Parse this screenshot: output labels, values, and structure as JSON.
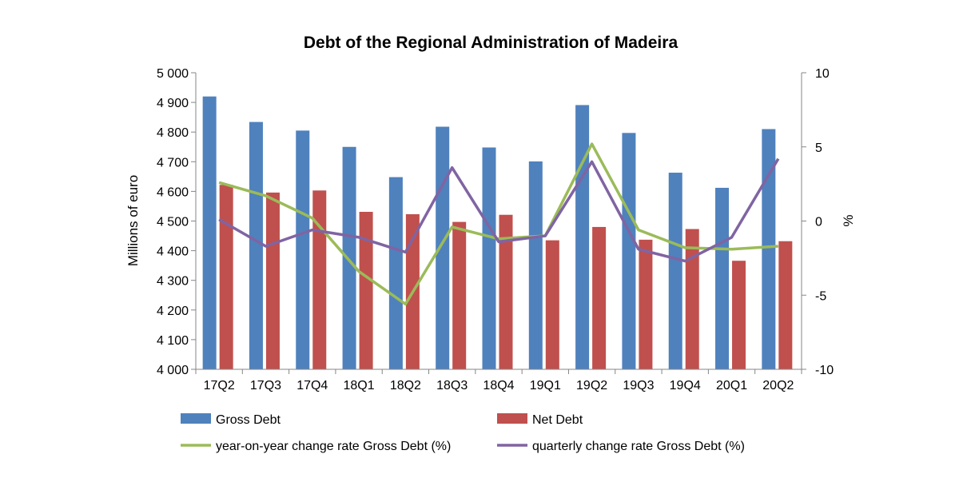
{
  "chart_data": {
    "type": "bar",
    "title": "Debt of the Regional Administration of Madeira",
    "categories": [
      "17Q2",
      "17Q3",
      "17Q4",
      "18Q1",
      "18Q2",
      "18Q3",
      "18Q4",
      "19Q1",
      "19Q2",
      "19Q3",
      "19Q4",
      "20Q1",
      "20Q2"
    ],
    "left_axis": {
      "label": "Millions of euro",
      "ylim": [
        4000,
        5000
      ],
      "ticks": [
        4000,
        4100,
        4200,
        4300,
        4400,
        4500,
        4600,
        4700,
        4800,
        4900,
        5000
      ],
      "tick_labels": [
        "4 000",
        "4 100",
        "4 200",
        "4 300",
        "4 400",
        "4 500",
        "4 600",
        "4 700",
        "4 800",
        "4 900",
        "5 000"
      ]
    },
    "right_axis": {
      "label": "%",
      "ylim": [
        -10,
        10
      ],
      "ticks": [
        -10,
        -5,
        0,
        5,
        10
      ],
      "tick_labels": [
        "-10",
        "-5",
        "0",
        "5",
        "10"
      ]
    },
    "series": [
      {
        "name": "Gross Debt",
        "kind": "bar",
        "axis": "left",
        "color": "#4F81BD",
        "values": [
          4920,
          4834,
          4805,
          4750,
          4648,
          4818,
          4748,
          4701,
          4891,
          4797,
          4663,
          4612,
          4810
        ]
      },
      {
        "name": "Net Debt",
        "kind": "bar",
        "axis": "left",
        "color": "#C0504D",
        "values": [
          4622,
          4596,
          4603,
          4531,
          4523,
          4497,
          4521,
          4435,
          4480,
          4437,
          4473,
          4366,
          4432
        ]
      },
      {
        "name": "year-on-year change rate Gross Debt (%)",
        "kind": "line",
        "axis": "right",
        "color": "#9BBB59",
        "values": [
          2.6,
          1.7,
          0.2,
          -3.4,
          -5.6,
          -0.4,
          -1.2,
          -1.0,
          5.2,
          -0.6,
          -1.8,
          -1.9,
          -1.7
        ]
      },
      {
        "name": "quarterly change rate Gross Debt (%)",
        "kind": "line",
        "axis": "right",
        "color": "#8064A2",
        "values": [
          0.1,
          -1.7,
          -0.6,
          -1.1,
          -2.1,
          3.6,
          -1.4,
          -1.0,
          4.0,
          -1.9,
          -2.7,
          -1.1,
          4.2
        ]
      }
    ],
    "grid": false,
    "legend_position": "bottom"
  }
}
